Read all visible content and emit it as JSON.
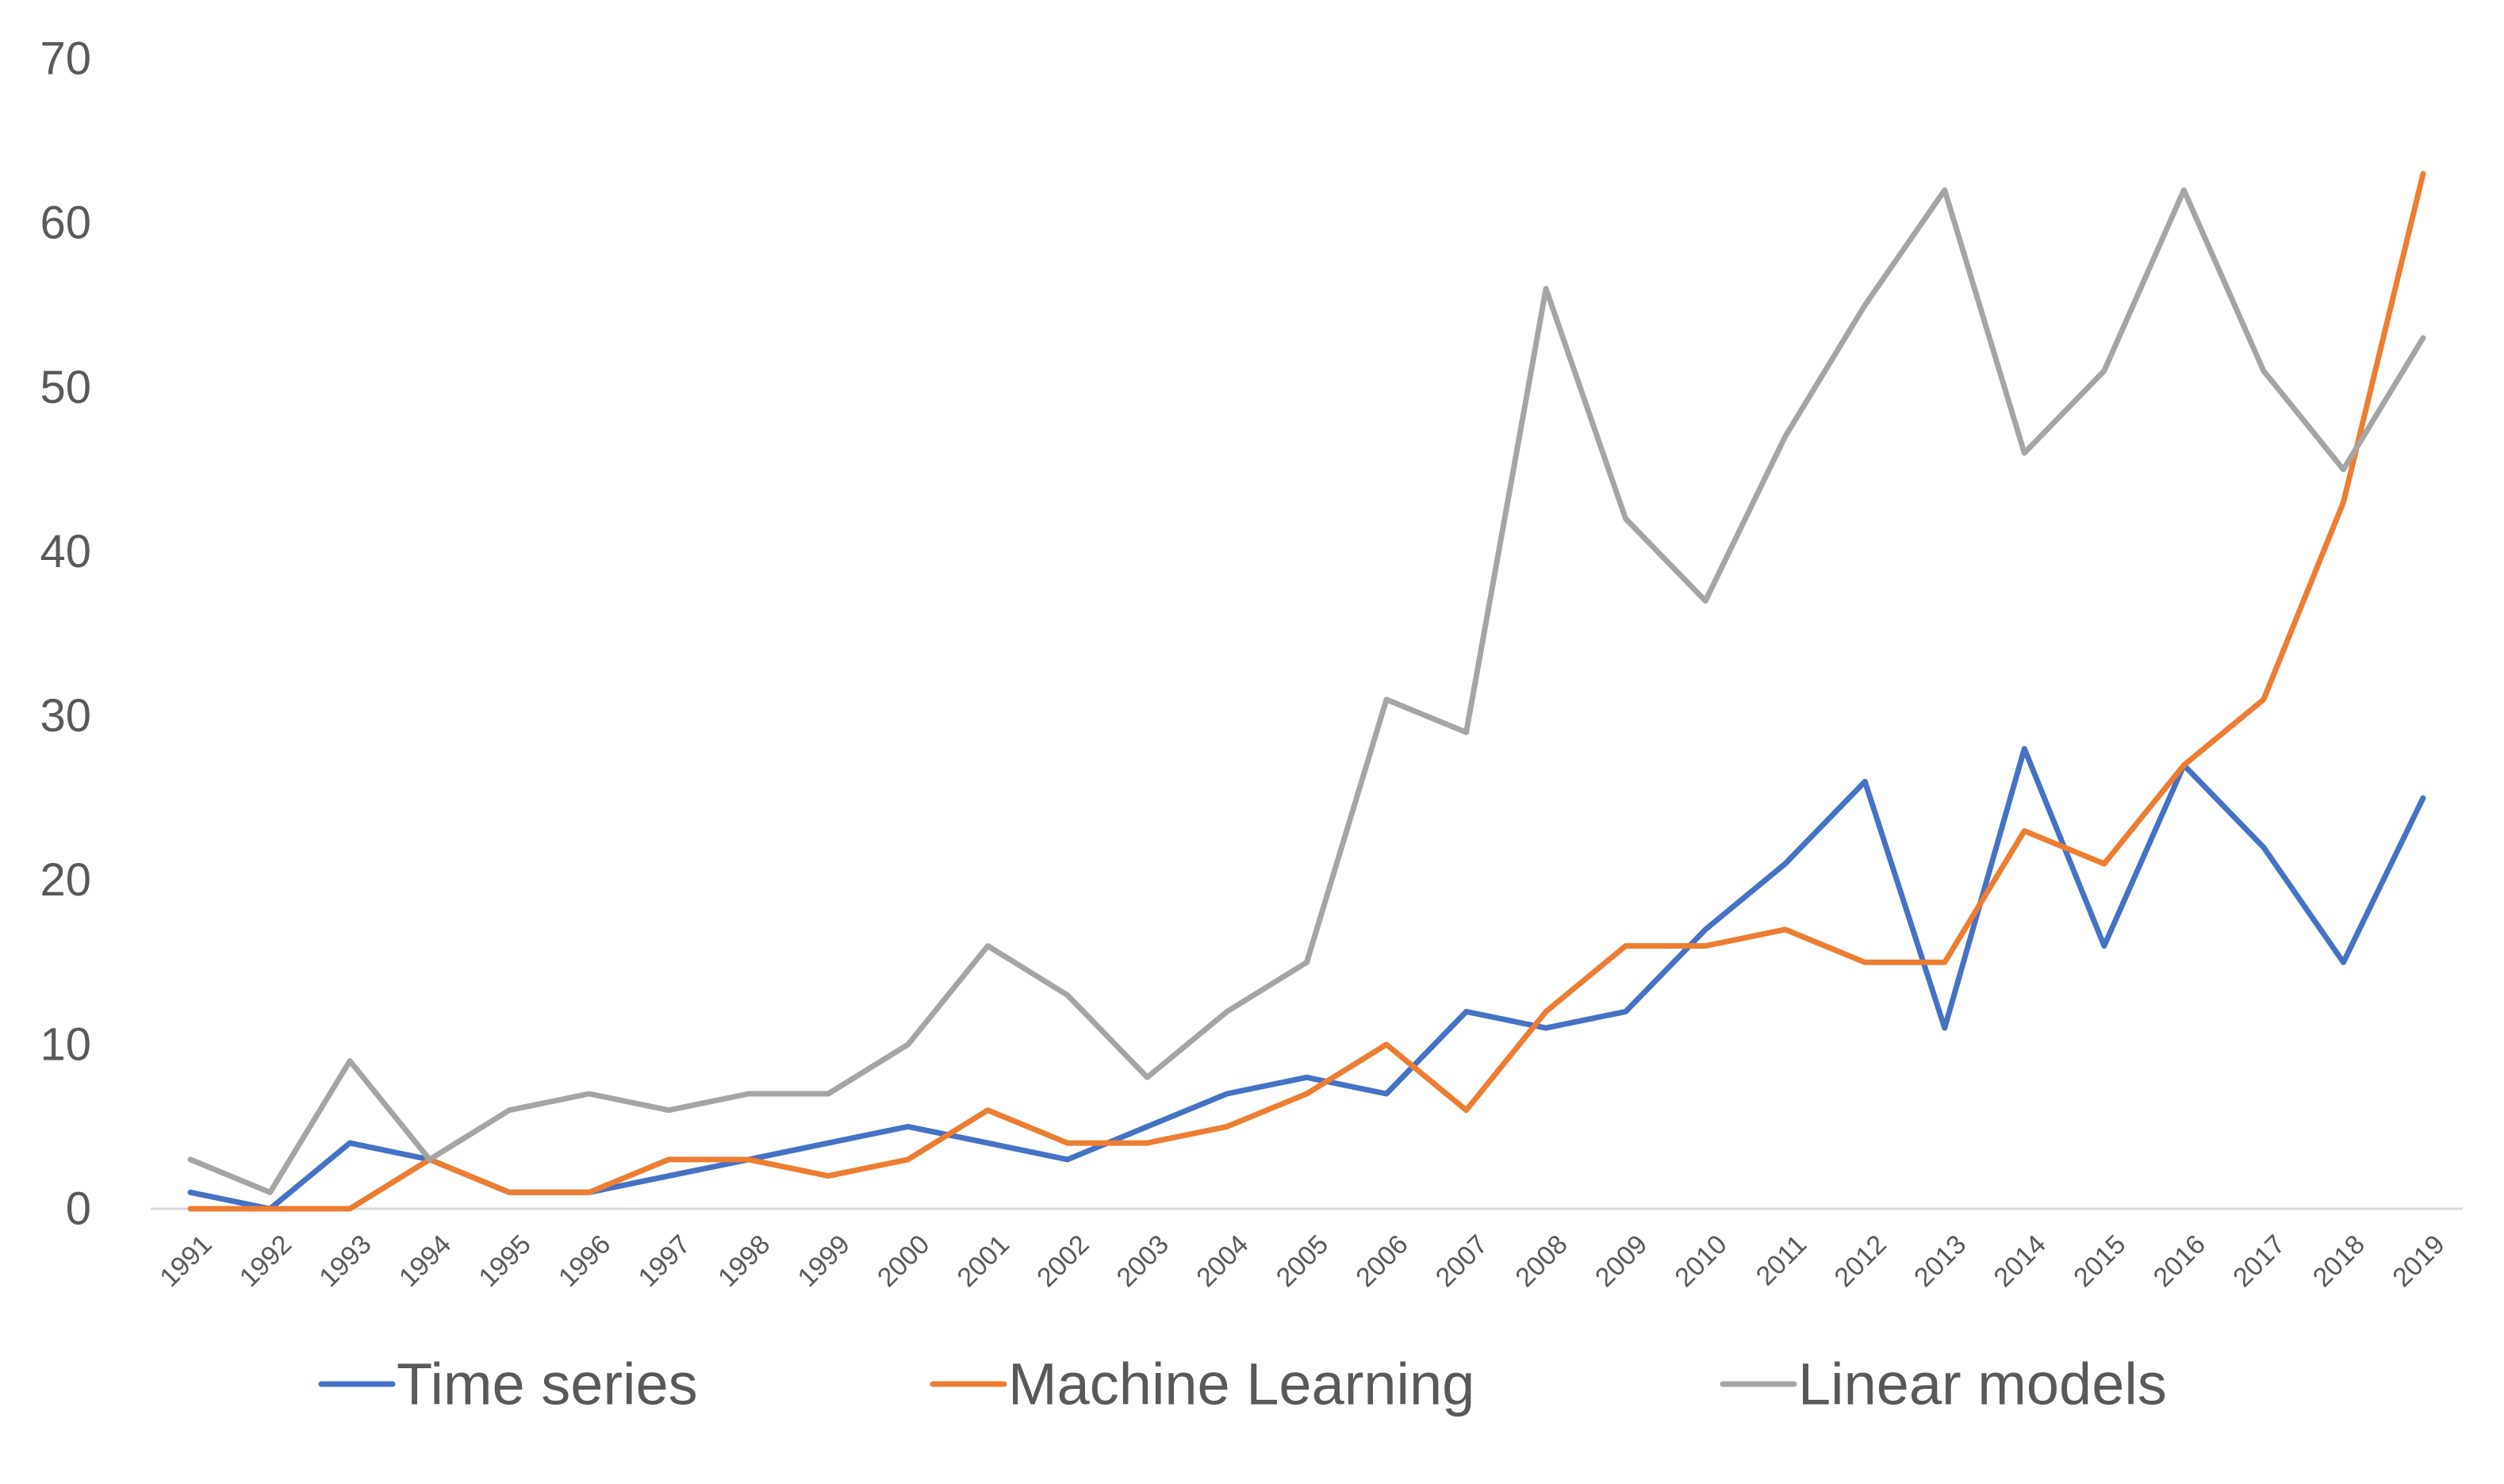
{
  "chart_data": {
    "type": "line",
    "title": "",
    "xlabel": "",
    "ylabel": "",
    "ylim": [
      0,
      70
    ],
    "yticks": [
      0,
      10,
      20,
      30,
      40,
      50,
      60,
      70
    ],
    "grid": false,
    "legend_position": "bottom",
    "categories": [
      "1991",
      "1992",
      "1993",
      "1994",
      "1995",
      "1996",
      "1997",
      "1998",
      "1999",
      "2000",
      "2001",
      "2002",
      "2003",
      "2004",
      "2005",
      "2006",
      "2007",
      "2008",
      "2009",
      "2010",
      "2011",
      "2012",
      "2013",
      "2014",
      "2015",
      "2016",
      "2017",
      "2018",
      "2019"
    ],
    "series": [
      {
        "name": "Time series",
        "color": "#4472C4",
        "values": [
          1,
          0,
          4,
          3,
          1,
          1,
          2,
          3,
          4,
          5,
          4,
          3,
          5,
          7,
          8,
          7,
          12,
          11,
          12,
          17,
          21,
          26,
          11,
          28,
          16,
          27,
          22,
          15,
          25
        ]
      },
      {
        "name": "Machine Learning",
        "color": "#ED7D31",
        "values": [
          0,
          0,
          0,
          3,
          1,
          1,
          3,
          3,
          2,
          3,
          6,
          4,
          4,
          5,
          7,
          10,
          6,
          12,
          16,
          16,
          17,
          15,
          15,
          23,
          21,
          27,
          31,
          43,
          63
        ]
      },
      {
        "name": "Linear models",
        "color": "#A5A5A5",
        "values": [
          3,
          1,
          9,
          3,
          6,
          7,
          6,
          7,
          7,
          10,
          16,
          13,
          8,
          12,
          15,
          31,
          29,
          56,
          42,
          37,
          47,
          55,
          62,
          46,
          51,
          62,
          51,
          45,
          53
        ]
      }
    ]
  },
  "colors": {
    "axis_line": "#D9D9D9",
    "tick_text": "#595959"
  }
}
